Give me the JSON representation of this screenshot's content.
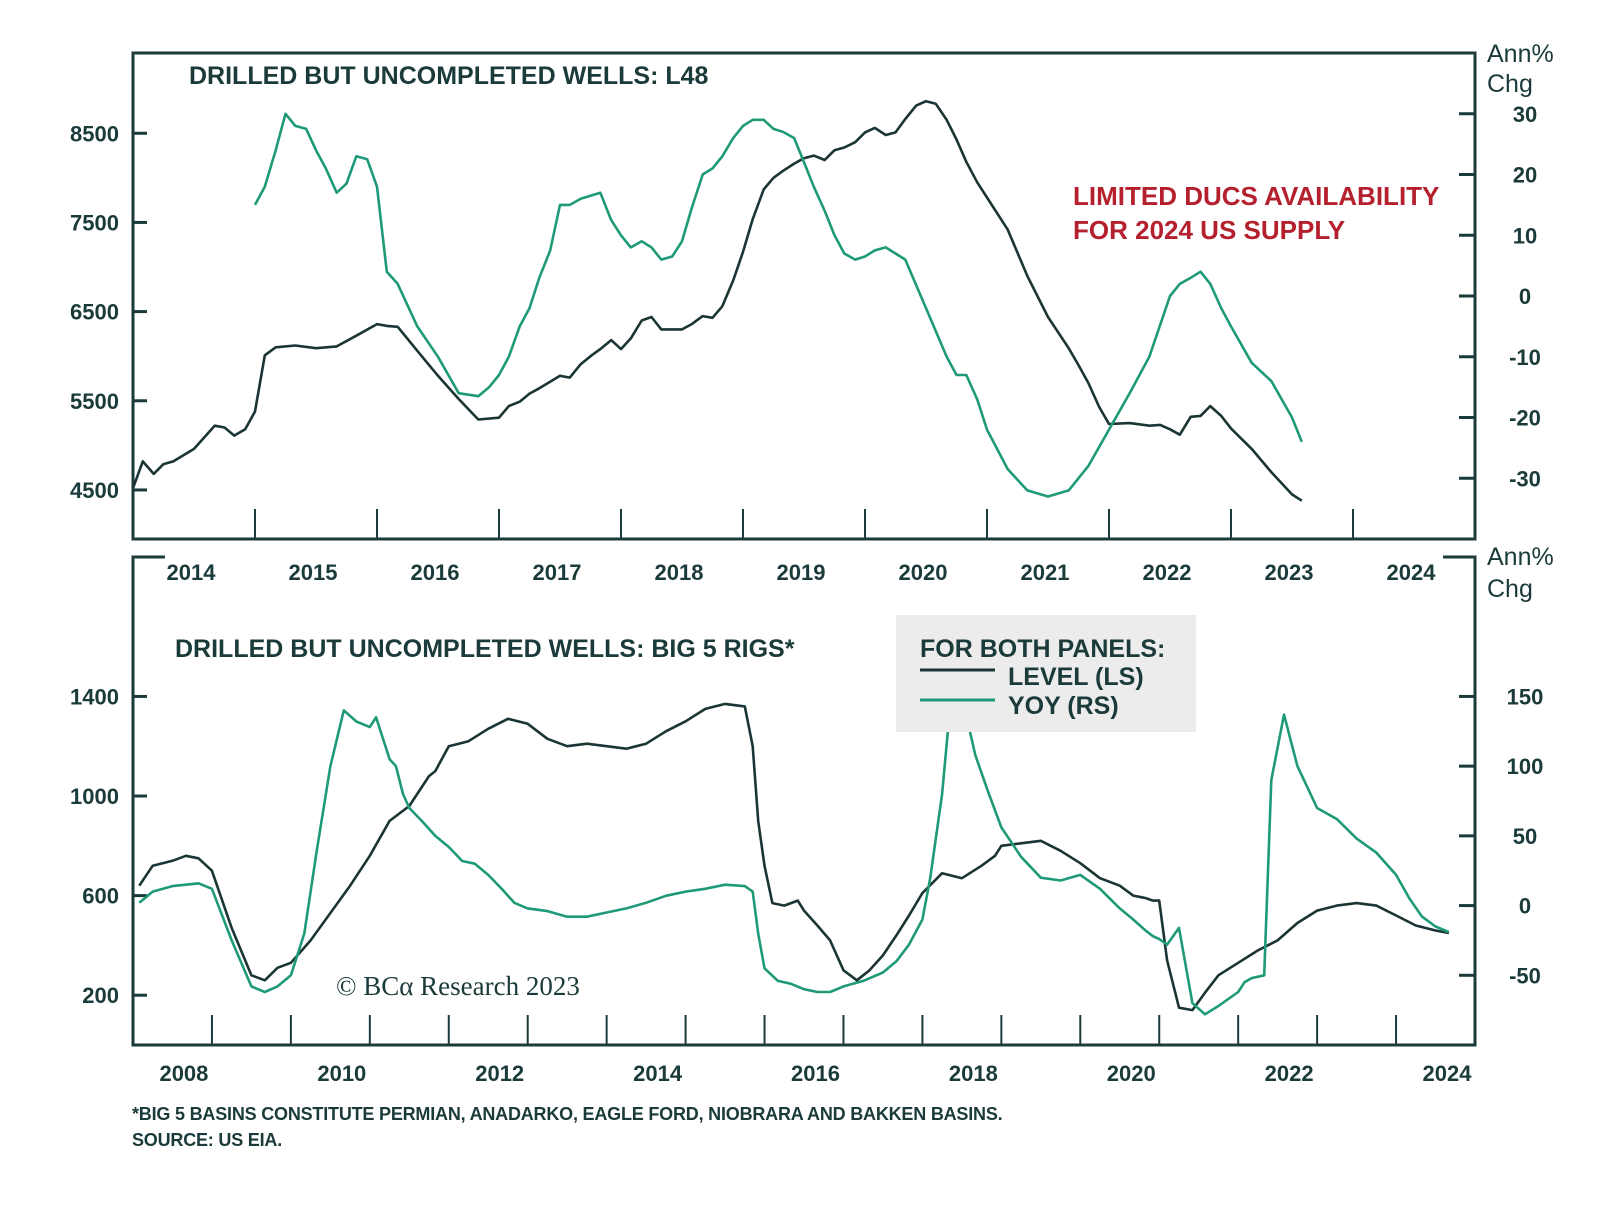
{
  "chart_data": [
    {
      "type": "line",
      "panel": "top",
      "title": "DRILLED BUT UNCOMPLETED WELLS: L48",
      "annotation": [
        "LIMITED DUCS AVAILABILITY",
        "FOR 2024 US SUPPLY"
      ],
      "annotation_color": "#b5202e",
      "x_ticks": [
        "2014",
        "2015",
        "2016",
        "2017",
        "2018",
        "2019",
        "2020",
        "2021",
        "2022",
        "2023",
        "2024"
      ],
      "x_range": [
        2014.0,
        2025.0
      ],
      "left_axis": {
        "label": "",
        "ticks": [
          "4500",
          "5500",
          "6500",
          "7500",
          "8500"
        ],
        "ylim": [
          3950,
          9400
        ]
      },
      "right_axis": {
        "label": [
          "Ann%",
          "Chg"
        ],
        "ticks": [
          "-30",
          "-20",
          "-10",
          "0",
          "10",
          "20",
          "30"
        ],
        "ylim": [
          -40,
          40
        ]
      },
      "series": [
        {
          "name": "LEVEL (LS)",
          "axis": "left",
          "color": "#1b3535",
          "x": [
            2014.0,
            2014.08,
            2014.17,
            2014.25,
            2014.33,
            2014.5,
            2014.67,
            2014.75,
            2014.83,
            2014.92,
            2015.0,
            2015.08,
            2015.17,
            2015.33,
            2015.5,
            2015.67,
            2015.83,
            2016.0,
            2016.08,
            2016.17,
            2016.33,
            2016.5,
            2016.67,
            2016.83,
            2017.0,
            2017.08,
            2017.17,
            2017.25,
            2017.33,
            2017.5,
            2017.58,
            2017.67,
            2017.75,
            2017.83,
            2017.92,
            2018.0,
            2018.08,
            2018.17,
            2018.25,
            2018.33,
            2018.42,
            2018.5,
            2018.58,
            2018.67,
            2018.75,
            2018.83,
            2018.92,
            2019.0,
            2019.08,
            2019.17,
            2019.25,
            2019.33,
            2019.42,
            2019.5,
            2019.58,
            2019.67,
            2019.75,
            2019.83,
            2019.92,
            2020.0,
            2020.08,
            2020.17,
            2020.25,
            2020.33,
            2020.42,
            2020.5,
            2020.58,
            2020.67,
            2020.75,
            2020.83,
            2020.92,
            2021.0,
            2021.17,
            2021.33,
            2021.5,
            2021.67,
            2021.75,
            2021.83,
            2021.92,
            2022.0,
            2022.17,
            2022.33,
            2022.42,
            2022.5,
            2022.58,
            2022.67,
            2022.75,
            2022.83,
            2022.92,
            2023.0,
            2023.17,
            2023.33,
            2023.5,
            2023.58
          ],
          "y": [
            4520,
            4820,
            4680,
            4790,
            4820,
            4960,
            5220,
            5200,
            5110,
            5180,
            5380,
            6010,
            6100,
            6120,
            6090,
            6110,
            6230,
            6360,
            6340,
            6330,
            6060,
            5780,
            5520,
            5290,
            5310,
            5440,
            5490,
            5580,
            5640,
            5780,
            5760,
            5910,
            6000,
            6080,
            6180,
            6080,
            6200,
            6400,
            6440,
            6300,
            6300,
            6300,
            6360,
            6450,
            6430,
            6560,
            6850,
            7170,
            7540,
            7870,
            8000,
            8080,
            8160,
            8220,
            8250,
            8200,
            8310,
            8340,
            8400,
            8510,
            8560,
            8480,
            8510,
            8660,
            8810,
            8860,
            8830,
            8650,
            8430,
            8180,
            7950,
            7780,
            7420,
            6900,
            6440,
            6090,
            5900,
            5700,
            5430,
            5240,
            5250,
            5220,
            5230,
            5180,
            5120,
            5320,
            5330,
            5440,
            5330,
            5190,
            4960,
            4700,
            4450,
            4380
          ]
        },
        {
          "name": "YOY (RS)",
          "axis": "right",
          "color": "#1f9a78",
          "x": [
            2015.0,
            2015.08,
            2015.17,
            2015.25,
            2015.33,
            2015.42,
            2015.5,
            2015.58,
            2015.67,
            2015.75,
            2015.83,
            2015.92,
            2016.0,
            2016.08,
            2016.17,
            2016.33,
            2016.5,
            2016.67,
            2016.83,
            2016.92,
            2017.0,
            2017.08,
            2017.17,
            2017.25,
            2017.33,
            2017.42,
            2017.5,
            2017.58,
            2017.67,
            2017.75,
            2017.83,
            2017.92,
            2018.0,
            2018.08,
            2018.17,
            2018.25,
            2018.33,
            2018.42,
            2018.5,
            2018.58,
            2018.67,
            2018.75,
            2018.83,
            2018.92,
            2019.0,
            2019.08,
            2019.17,
            2019.25,
            2019.33,
            2019.42,
            2019.5,
            2019.58,
            2019.67,
            2019.75,
            2019.83,
            2019.92,
            2020.0,
            2020.08,
            2020.17,
            2020.25,
            2020.33,
            2020.5,
            2020.67,
            2020.75,
            2020.83,
            2020.92,
            2021.0,
            2021.17,
            2021.33,
            2021.5,
            2021.67,
            2021.83,
            2022.0,
            2022.17,
            2022.33,
            2022.5,
            2022.58,
            2022.67,
            2022.75,
            2022.83,
            2022.92,
            2023.0,
            2023.17,
            2023.33,
            2023.5,
            2023.58
          ],
          "y": [
            15,
            18,
            24,
            30,
            28,
            27.5,
            24,
            21,
            17,
            18.5,
            23,
            22.5,
            18,
            4,
            2,
            -5,
            -10,
            -16,
            -16.5,
            -15,
            -13,
            -10,
            -5,
            -2,
            3,
            7.5,
            15,
            15,
            16,
            16.5,
            17,
            12.5,
            10,
            8,
            9,
            8,
            6,
            6.5,
            9,
            14.5,
            20,
            21,
            23,
            26,
            28,
            29,
            29,
            27.5,
            27,
            26,
            22,
            18,
            14,
            10,
            7,
            6,
            6.5,
            7.5,
            8,
            7,
            6,
            -2,
            -10,
            -13,
            -13,
            -17,
            -22,
            -28.5,
            -32,
            -33,
            -32,
            -28,
            -22,
            -16,
            -10,
            0,
            2,
            3,
            4,
            2,
            -2,
            -5,
            -11,
            -14,
            -20,
            -24
          ]
        }
      ]
    },
    {
      "type": "line",
      "panel": "bottom",
      "title": "DRILLED BUT UNCOMPLETED WELLS: BIG 5 RIGS*",
      "x_ticks": [
        "2008",
        "2010",
        "2012",
        "2014",
        "2016",
        "2018",
        "2020",
        "2022",
        "2024"
      ],
      "x_range": [
        2007.0,
        2024.0
      ],
      "left_axis": {
        "label": "",
        "ticks": [
          "200",
          "600",
          "1000",
          "1400"
        ],
        "ylim": [
          0,
          1960
        ]
      },
      "right_axis": {
        "label": [
          "Ann%",
          "Chg"
        ],
        "ticks": [
          "-50",
          "0",
          "50",
          "100",
          "150"
        ],
        "ylim": [
          -100,
          250
        ]
      },
      "series": [
        {
          "name": "LEVEL (LS)",
          "axis": "left",
          "color": "#1b3535",
          "x": [
            2007.08,
            2007.25,
            2007.5,
            2007.67,
            2007.83,
            2008.0,
            2008.25,
            2008.5,
            2008.67,
            2008.83,
            2009.0,
            2009.25,
            2009.5,
            2009.75,
            2010.0,
            2010.25,
            2010.5,
            2010.75,
            2010.83,
            2011.0,
            2011.25,
            2011.5,
            2011.75,
            2012.0,
            2012.25,
            2012.5,
            2012.75,
            2013.0,
            2013.25,
            2013.5,
            2013.75,
            2014.0,
            2014.25,
            2014.5,
            2014.75,
            2014.85,
            2014.92,
            2015.0,
            2015.1,
            2015.25,
            2015.42,
            2015.5,
            2015.67,
            2015.83,
            2016.0,
            2016.17,
            2016.33,
            2016.5,
            2016.67,
            2016.83,
            2017.0,
            2017.25,
            2017.5,
            2017.75,
            2017.92,
            2018.0,
            2018.25,
            2018.5,
            2018.75,
            2019.0,
            2019.25,
            2019.5,
            2019.67,
            2019.83,
            2019.92,
            2020.0,
            2020.1,
            2020.25,
            2020.42,
            2020.58,
            2020.75,
            2021.0,
            2021.25,
            2021.5,
            2021.75,
            2022.0,
            2022.25,
            2022.5,
            2022.75,
            2023.0,
            2023.25,
            2023.5,
            2023.67
          ],
          "y": [
            640,
            720,
            740,
            760,
            750,
            700,
            470,
            280,
            260,
            310,
            330,
            420,
            530,
            640,
            760,
            900,
            960,
            1080,
            1100,
            1200,
            1220,
            1270,
            1310,
            1290,
            1230,
            1200,
            1210,
            1200,
            1190,
            1210,
            1260,
            1300,
            1350,
            1370,
            1360,
            1200,
            900,
            720,
            570,
            560,
            580,
            540,
            480,
            420,
            300,
            260,
            300,
            360,
            440,
            520,
            610,
            690,
            670,
            720,
            760,
            800,
            810,
            820,
            780,
            730,
            670,
            640,
            600,
            590,
            580,
            580,
            340,
            150,
            140,
            210,
            280,
            330,
            380,
            420,
            490,
            540,
            560,
            570,
            560,
            520,
            480,
            460,
            450
          ]
        },
        {
          "name": "YOY (RS)",
          "axis": "right",
          "color": "#1f9a78",
          "x": [
            2007.08,
            2007.25,
            2007.5,
            2007.67,
            2007.83,
            2008.0,
            2008.25,
            2008.5,
            2008.67,
            2008.83,
            2009.0,
            2009.17,
            2009.33,
            2009.5,
            2009.67,
            2009.83,
            2010.0,
            2010.08,
            2010.25,
            2010.33,
            2010.42,
            2010.5,
            2010.67,
            2010.83,
            2011.0,
            2011.17,
            2011.33,
            2011.5,
            2011.67,
            2011.83,
            2012.0,
            2012.25,
            2012.5,
            2012.75,
            2013.0,
            2013.25,
            2013.5,
            2013.75,
            2014.0,
            2014.25,
            2014.5,
            2014.75,
            2014.85,
            2014.92,
            2015.0,
            2015.17,
            2015.33,
            2015.5,
            2015.67,
            2015.83,
            2016.0,
            2016.25,
            2016.5,
            2016.67,
            2016.83,
            2017.0,
            2017.1,
            2017.25,
            2017.33,
            2017.5,
            2017.67,
            2017.83,
            2018.0,
            2018.25,
            2018.5,
            2018.75,
            2019.0,
            2019.25,
            2019.5,
            2019.67,
            2019.83,
            2019.92,
            2020.0,
            2020.1,
            2020.25,
            2020.42,
            2020.58,
            2020.75,
            2021.0,
            2021.08,
            2021.17,
            2021.33,
            2021.42,
            2021.58,
            2021.75,
            2022.0,
            2022.25,
            2022.5,
            2022.75,
            2023.0,
            2023.17,
            2023.33,
            2023.5,
            2023.67
          ],
          "y": [
            2,
            10,
            14,
            15,
            16,
            12,
            -25,
            -58,
            -62,
            -58,
            -50,
            -20,
            40,
            100,
            140,
            132,
            128,
            135,
            105,
            100,
            80,
            70,
            60,
            50,
            42,
            32,
            30,
            22,
            12,
            2,
            -2,
            -4,
            -8,
            -8,
            -5,
            -2,
            2,
            7,
            10,
            12,
            15,
            14,
            10,
            -20,
            -45,
            -54,
            -56,
            -60,
            -62,
            -62,
            -58,
            -54,
            -48,
            -40,
            -28,
            -10,
            20,
            80,
            130,
            150,
            108,
            82,
            56,
            35,
            20,
            18,
            22,
            12,
            -2,
            -10,
            -18,
            -22,
            -24,
            -28,
            -16,
            -70,
            -78,
            -72,
            -62,
            -55,
            -52,
            -50,
            90,
            137,
            100,
            70,
            62,
            48,
            38,
            22,
            5,
            -8,
            -15,
            -19
          ]
        }
      ]
    }
  ],
  "legend": {
    "title": "FOR BOTH PANELS:",
    "items": [
      {
        "label": "LEVEL (LS)",
        "color": "#1b3535"
      },
      {
        "label": "YOY (RS)",
        "color": "#1f9a78"
      }
    ]
  },
  "watermark": "© BCα Research 2023",
  "footnotes": [
    "*BIG 5 BASINS CONSTITUTE PERMIAN, ANADARKO, EAGLE FORD, NIOBRARA AND BAKKEN BASINS.",
    "SOURCE: US EIA."
  ]
}
